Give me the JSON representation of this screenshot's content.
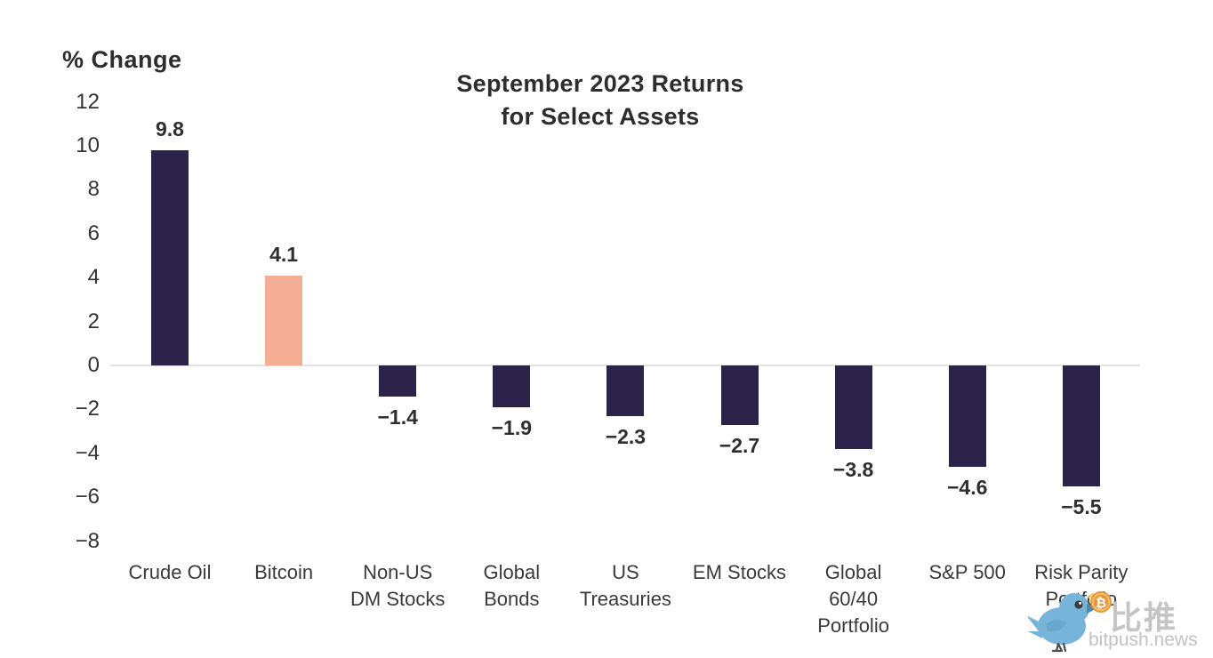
{
  "chart_data": {
    "type": "bar",
    "title_lines": [
      "September 2023 Returns",
      "for Select Assets"
    ],
    "title": "September 2023 Returns for Select Assets",
    "ylabel": "% Change",
    "xlabel": "",
    "categories": [
      "Crude Oil",
      "Bitcoin",
      "Non-US DM Stocks",
      "Global Bonds",
      "US Treasuries",
      "EM Stocks",
      "Global 60/40 Portfolio",
      "S&P 500",
      "Risk Parity Portfolio"
    ],
    "category_lines": [
      [
        "Crude Oil"
      ],
      [
        "Bitcoin"
      ],
      [
        "Non-US",
        "DM Stocks"
      ],
      [
        "Global",
        "Bonds"
      ],
      [
        "US",
        "Treasuries"
      ],
      [
        "EM Stocks"
      ],
      [
        "Global",
        "60/40",
        "Portfolio"
      ],
      [
        "S&P 500"
      ],
      [
        "Risk Parity",
        "Portfolio"
      ]
    ],
    "values": [
      9.8,
      4.1,
      -1.4,
      -1.9,
      -2.3,
      -2.7,
      -3.8,
      -4.6,
      -5.5
    ],
    "value_labels": [
      "9.8",
      "4.1",
      "−1.4",
      "−1.9",
      "−2.3",
      "−2.7",
      "−3.8",
      "−4.6",
      "−5.5"
    ],
    "highlight_index": 1,
    "y_ticks": [
      12,
      10,
      8,
      6,
      4,
      2,
      0,
      -2,
      -4,
      -6,
      -8
    ],
    "y_tick_labels": [
      "12",
      "10",
      "8",
      "6",
      "4",
      "2",
      "0",
      "−2",
      "−4",
      "−6",
      "−8"
    ],
    "ylim": [
      -8,
      12
    ],
    "grid": false,
    "legend": "none"
  },
  "colors": {
    "bar_default": "#2b2349",
    "bar_highlight": "#f4ae96",
    "axis_line": "#e3e3e3",
    "title_text": "#2d2d2d",
    "tick_text": "#333333",
    "watermark_gray": "#c5c5c5",
    "bird_blue": "#76b4d9",
    "bird_blue_dark": "#5d9cc4",
    "coin_orange": "#e8963d"
  },
  "watermark": {
    "brand_cn": "比推",
    "brand_domain": "bitpush.news",
    "icon": "bird-with-bitcoin"
  }
}
